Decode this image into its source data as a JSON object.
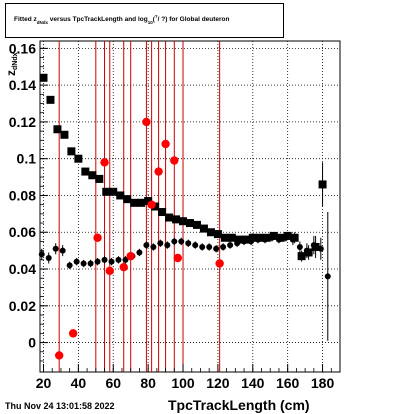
{
  "title": {
    "prefix": "Fitted  z",
    "sub1": "dNdx",
    "middle": "  versus  TpcTrackLength and log",
    "sub2": "10",
    "paren": "(",
    "sup": "?",
    "close": "/ ?) for Global deuteron"
  },
  "ylabel": {
    "main": "z",
    "sub": "dNdx"
  },
  "xlabel": "TpcTrackLength (cm)",
  "date": "Thu Nov 24 13:01:58 2022",
  "colors": {
    "series_black": "#000000",
    "series_red": "#ff0000",
    "vlines": "#cc0000",
    "grid": "#000000"
  },
  "chart_data": {
    "type": "scatter",
    "xlim": [
      18,
      190
    ],
    "ylim": [
      -0.016,
      0.164
    ],
    "x_ticks": [
      20,
      40,
      60,
      80,
      100,
      120,
      140,
      160,
      180
    ],
    "x_tick_labels": [
      "20",
      "40",
      "60",
      "80",
      "100",
      "120",
      "140",
      "160",
      "180"
    ],
    "y_ticks": [
      0,
      0.02,
      0.04,
      0.06,
      0.08,
      0.1,
      0.12,
      0.14,
      0.16
    ],
    "y_tick_labels": [
      "0",
      "0.02",
      "0.04",
      "0.06",
      "0.08",
      "0.1",
      "0.12",
      "0.14",
      "0.16"
    ],
    "grid": true,
    "vertical_lines_x": [
      29,
      50,
      55,
      58,
      66,
      70,
      79,
      82,
      86,
      90,
      95,
      100,
      121
    ],
    "series": [
      {
        "marker": "square",
        "points": [
          [
            20,
            0.144
          ],
          [
            24,
            0.132
          ],
          [
            28,
            0.116
          ],
          [
            32,
            0.113
          ],
          [
            36,
            0.104
          ],
          [
            40,
            0.1
          ],
          [
            44,
            0.093
          ],
          [
            48,
            0.091
          ],
          [
            52,
            0.089
          ],
          [
            56,
            0.082
          ],
          [
            60,
            0.082
          ],
          [
            64,
            0.08
          ],
          [
            68,
            0.078
          ],
          [
            72,
            0.076
          ],
          [
            76,
            0.076
          ],
          [
            80,
            0.077
          ],
          [
            84,
            0.074
          ],
          [
            88,
            0.071
          ],
          [
            92,
            0.068
          ],
          [
            96,
            0.067
          ],
          [
            100,
            0.066
          ],
          [
            104,
            0.065
          ],
          [
            108,
            0.064
          ],
          [
            112,
            0.062
          ],
          [
            116,
            0.06
          ],
          [
            120,
            0.059
          ],
          [
            124,
            0.057
          ],
          [
            128,
            0.057
          ],
          [
            132,
            0.056
          ],
          [
            136,
            0.056
          ],
          [
            140,
            0.057
          ],
          [
            144,
            0.057
          ],
          [
            148,
            0.057
          ],
          [
            152,
            0.058
          ],
          [
            156,
            0.057
          ],
          [
            160,
            0.058
          ],
          [
            164,
            0.057
          ],
          [
            168,
            0.047
          ],
          [
            172,
            0.049
          ],
          [
            176,
            0.052
          ],
          [
            180,
            0.086
          ]
        ],
        "errors": [
          0.002,
          0.002,
          0.002,
          0.002,
          0.002,
          0.002,
          0.002,
          0.002,
          0.002,
          0.002,
          0.002,
          0.002,
          0.002,
          0.002,
          0.002,
          0.002,
          0.002,
          0.002,
          0.002,
          0.002,
          0.002,
          0.002,
          0.002,
          0.002,
          0.002,
          0.002,
          0.002,
          0.002,
          0.002,
          0.002,
          0.002,
          0.002,
          0.002,
          0.002,
          0.002,
          0.002,
          0.003,
          0.003,
          0.004,
          0.006,
          0.012
        ]
      },
      {
        "marker": "dot",
        "points": [
          [
            19,
            0.048
          ],
          [
            23,
            0.046
          ],
          [
            27,
            0.051
          ],
          [
            31,
            0.05
          ],
          [
            35,
            0.042
          ],
          [
            39,
            0.044
          ],
          [
            43,
            0.043
          ],
          [
            47,
            0.043
          ],
          [
            51,
            0.044
          ],
          [
            55,
            0.045
          ],
          [
            59,
            0.044
          ],
          [
            63,
            0.045
          ],
          [
            67,
            0.045
          ],
          [
            71,
            0.047
          ],
          [
            75,
            0.049
          ],
          [
            79,
            0.053
          ],
          [
            83,
            0.052
          ],
          [
            87,
            0.054
          ],
          [
            91,
            0.053
          ],
          [
            95,
            0.055
          ],
          [
            99,
            0.055
          ],
          [
            103,
            0.054
          ],
          [
            107,
            0.053
          ],
          [
            111,
            0.052
          ],
          [
            115,
            0.052
          ],
          [
            119,
            0.051
          ],
          [
            123,
            0.052
          ],
          [
            127,
            0.053
          ],
          [
            131,
            0.054
          ],
          [
            135,
            0.055
          ],
          [
            139,
            0.055
          ],
          [
            143,
            0.056
          ],
          [
            147,
            0.056
          ],
          [
            151,
            0.057
          ],
          [
            155,
            0.056
          ],
          [
            159,
            0.057
          ],
          [
            163,
            0.056
          ],
          [
            167,
            0.052
          ],
          [
            171,
            0.05
          ],
          [
            175,
            0.053
          ],
          [
            179,
            0.051
          ],
          [
            183,
            0.036
          ]
        ],
        "errors": [
          0.003,
          0.003,
          0.003,
          0.003,
          0.002,
          0.002,
          0.002,
          0.002,
          0.002,
          0.002,
          0.002,
          0.002,
          0.002,
          0.002,
          0.002,
          0.002,
          0.002,
          0.002,
          0.002,
          0.002,
          0.002,
          0.002,
          0.002,
          0.002,
          0.002,
          0.002,
          0.002,
          0.002,
          0.002,
          0.002,
          0.002,
          0.002,
          0.002,
          0.002,
          0.002,
          0.002,
          0.003,
          0.003,
          0.004,
          0.005,
          0.006,
          0.035
        ]
      },
      {
        "marker": "red-dot",
        "points": [
          [
            29,
            -0.007
          ],
          [
            37,
            0.005
          ],
          [
            51,
            0.057
          ],
          [
            55,
            0.098
          ],
          [
            58,
            0.039
          ],
          [
            66,
            0.041
          ],
          [
            70,
            0.047
          ],
          [
            79,
            0.12
          ],
          [
            82,
            0.075
          ],
          [
            86,
            0.093
          ],
          [
            90,
            0.108
          ],
          [
            95,
            0.099
          ],
          [
            97,
            0.046
          ],
          [
            121,
            0.043
          ]
        ]
      }
    ]
  }
}
